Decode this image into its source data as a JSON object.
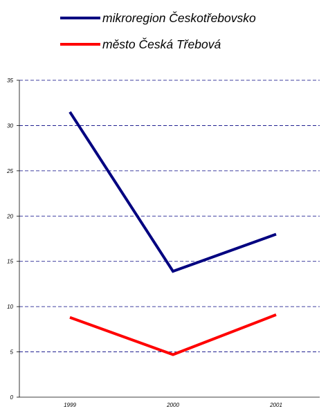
{
  "chart_data": {
    "type": "line",
    "categories": [
      "1999",
      "2000",
      "2001"
    ],
    "series": [
      {
        "name": "mikroregion Českotřebovsko",
        "values": [
          31.5,
          13.9,
          18.0
        ],
        "color": "#000080"
      },
      {
        "name": "město Česká Třebová",
        "values": [
          8.8,
          4.7,
          9.1
        ],
        "color": "#ff0000"
      }
    ],
    "title": "",
    "xlabel": "",
    "ylabel": "",
    "ylim": [
      0,
      35
    ],
    "yticks": [
      0,
      5,
      10,
      15,
      20,
      25,
      30,
      35
    ],
    "grid": true,
    "legend_position": "top-center"
  }
}
